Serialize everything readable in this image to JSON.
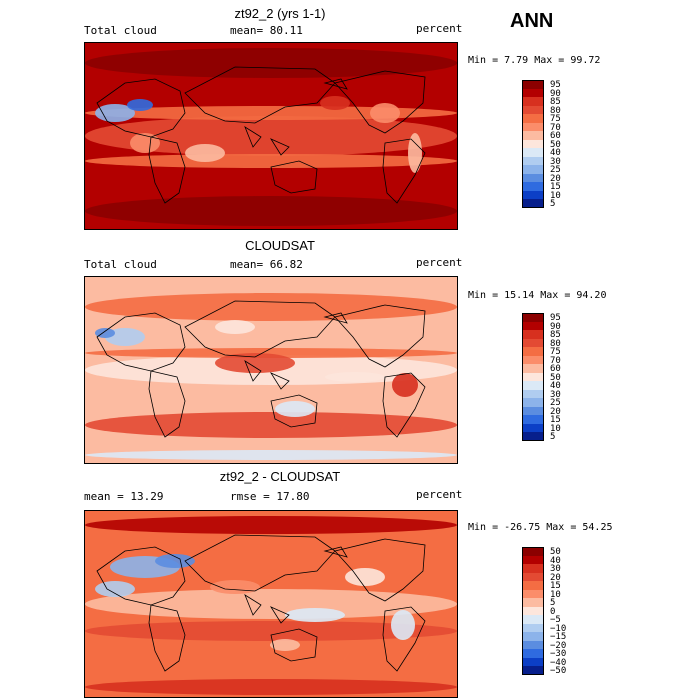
{
  "season_label": "ANN",
  "panels": [
    {
      "title": "zt92_2 (yrs 1-1)",
      "variable_label": "Total cloud",
      "stat_label": "mean=  80.11",
      "units_label": "percent",
      "minmax_label": "Min =   7.79 Max =  99.72"
    },
    {
      "title": "CLOUDSAT",
      "variable_label": "Total cloud",
      "stat_label": "mean=  66.82",
      "units_label": "percent",
      "minmax_label": "Min =  15.14 Max =  94.20"
    },
    {
      "title": "zt92_2 - CLOUDSAT",
      "variable_label": "mean =  13.29",
      "stat_label": "rmse =  17.80",
      "units_label": "percent",
      "minmax_label": "Min = -26.75 Max =  54.25"
    }
  ],
  "chart_data": [
    {
      "type": "heatmap",
      "title": "zt92_2 (yrs 1-1)",
      "variable": "Total cloud",
      "units": "percent",
      "mean": 80.11,
      "min": 7.79,
      "max": 99.72,
      "colorbar_levels": [
        "95",
        "90",
        "85",
        "80",
        "75",
        "70",
        "60",
        "50",
        "40",
        "30",
        "25",
        "20",
        "15",
        "10",
        "5"
      ],
      "colorbar_colors": [
        "#8b0000",
        "#b30000",
        "#d7301f",
        "#e34a33",
        "#f46d43",
        "#fb8d6a",
        "#fcbba1",
        "#fde6dc",
        "#dbe9f6",
        "#b0cdf0",
        "#8cb3ea",
        "#5b8de0",
        "#2f6be0",
        "#0c3fc6",
        "#071f8c"
      ]
    },
    {
      "type": "heatmap",
      "title": "CLOUDSAT",
      "variable": "Total cloud",
      "units": "percent",
      "mean": 66.82,
      "min": 15.14,
      "max": 94.2,
      "colorbar_levels": [
        "95",
        "90",
        "85",
        "80",
        "75",
        "70",
        "60",
        "50",
        "40",
        "30",
        "25",
        "20",
        "15",
        "10",
        "5"
      ],
      "colorbar_colors": [
        "#8b0000",
        "#b30000",
        "#d7301f",
        "#e34a33",
        "#f46d43",
        "#fb8d6a",
        "#fcbba1",
        "#fde6dc",
        "#dbe9f6",
        "#b0cdf0",
        "#8cb3ea",
        "#5b8de0",
        "#2f6be0",
        "#0c3fc6",
        "#071f8c"
      ]
    },
    {
      "type": "heatmap",
      "title": "zt92_2 - CLOUDSAT",
      "units": "percent",
      "mean": 13.29,
      "rmse": 17.8,
      "min": -26.75,
      "max": 54.25,
      "colorbar_levels": [
        "50",
        "40",
        "30",
        "20",
        "15",
        "10",
        "5",
        "0",
        "−5",
        "−10",
        "−15",
        "−20",
        "−30",
        "−40",
        "−50"
      ],
      "colorbar_colors": [
        "#8b0000",
        "#b30000",
        "#d7301f",
        "#e34a33",
        "#f46d43",
        "#fb8d6a",
        "#fcbba1",
        "#fde6dc",
        "#dbe9f6",
        "#b0cdf0",
        "#8cb3ea",
        "#5b8de0",
        "#2f6be0",
        "#0c3fc6",
        "#071f8c"
      ]
    }
  ]
}
